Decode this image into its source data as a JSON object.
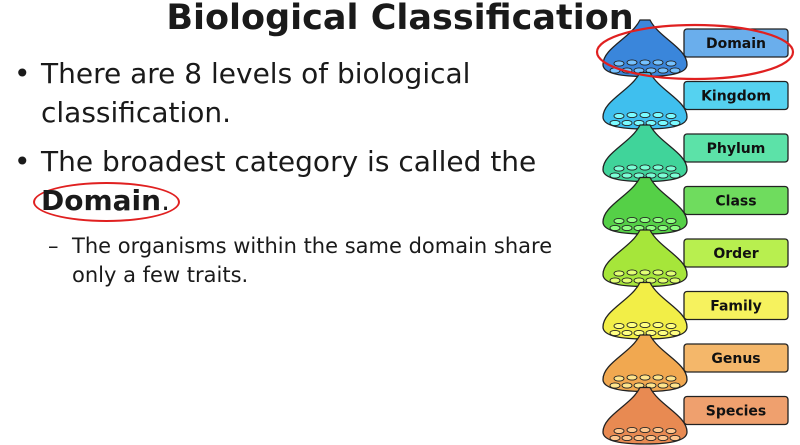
{
  "slide": {
    "title": "Biological Classification",
    "bullets": [
      {
        "marker": "•",
        "text": "There are 8 levels of biological classification."
      },
      {
        "marker": "•",
        "prefix": "The broadest category is called the ",
        "highlight": "Domain",
        "suffix": "."
      }
    ],
    "sub_bullet": {
      "marker": "–",
      "text": "The organisms within the same domain share only a few traits."
    }
  },
  "hierarchy": {
    "levels": [
      {
        "label": "Domain",
        "color": "#3a86db",
        "label_bg": "#6aaeec"
      },
      {
        "label": "Kingdom",
        "color": "#3fbfee",
        "label_bg": "#55d2f0"
      },
      {
        "label": "Phylum",
        "color": "#40d49a",
        "label_bg": "#5ce2a8"
      },
      {
        "label": "Class",
        "color": "#55d047",
        "label_bg": "#6fdc5e"
      },
      {
        "label": "Order",
        "color": "#a6e63a",
        "label_bg": "#b8ef4f"
      },
      {
        "label": "Family",
        "color": "#f2ee47",
        "label_bg": "#f6f25e"
      },
      {
        "label": "Genus",
        "color": "#f1a850",
        "label_bg": "#f4b76a"
      },
      {
        "label": "Species",
        "color": "#e88a52",
        "label_bg": "#efa06e"
      }
    ],
    "highlight_color": "#e02020"
  }
}
